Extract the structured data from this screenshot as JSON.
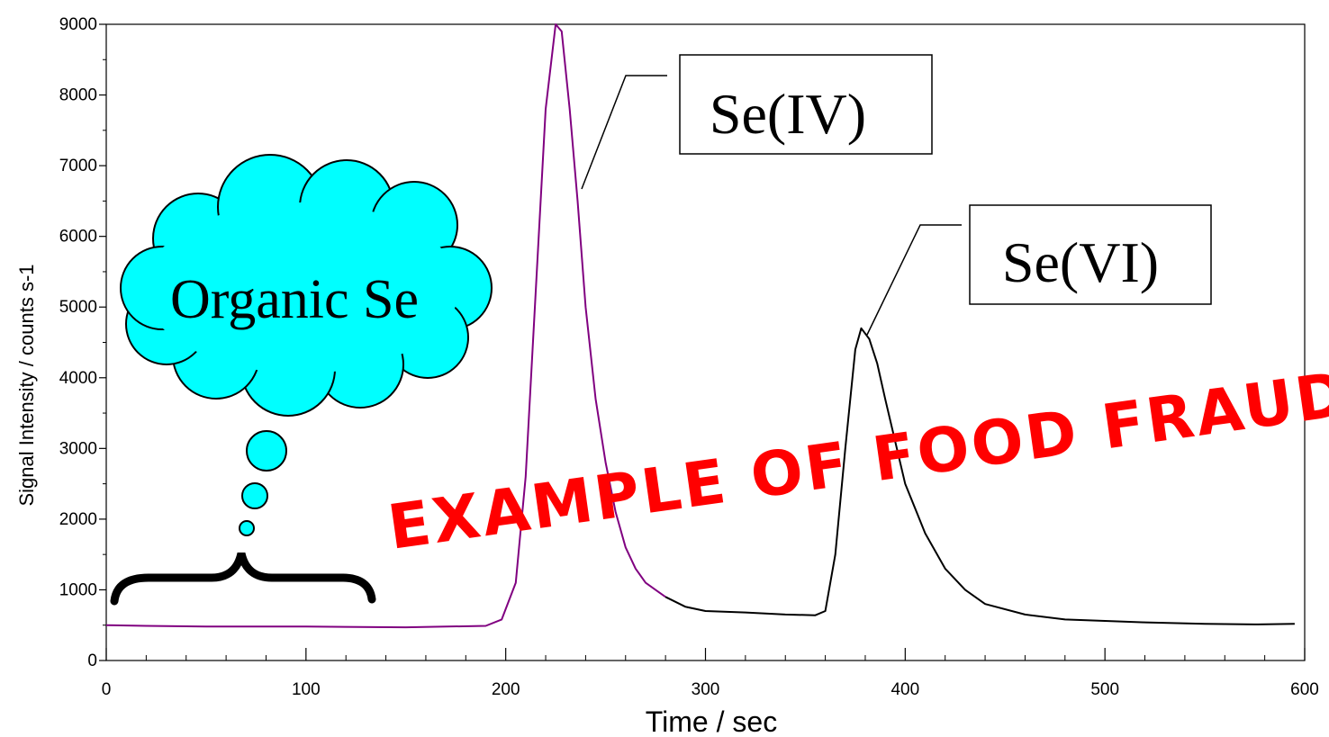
{
  "chart_data": {
    "type": "line",
    "xlabel": "Time / sec",
    "ylabel": "Signal Intensity / counts s-1",
    "xlim": [
      0,
      600
    ],
    "ylim": [
      0,
      9000
    ],
    "xticks": [
      0,
      100,
      200,
      300,
      400,
      500,
      600
    ],
    "yticks": [
      0,
      1000,
      2000,
      3000,
      4000,
      5000,
      6000,
      7000,
      8000,
      9000
    ],
    "grid": false,
    "series": [
      {
        "color": "#800080",
        "x": [
          0,
          20,
          50,
          100,
          150,
          190,
          198,
          205,
          210,
          215,
          220,
          225,
          228,
          232,
          236,
          240,
          245,
          250,
          255,
          260,
          265,
          270,
          275,
          280
        ],
        "y": [
          500,
          490,
          480,
          480,
          470,
          490,
          580,
          1100,
          2600,
          5200,
          7800,
          9000,
          8900,
          7800,
          6500,
          5000,
          3700,
          2800,
          2100,
          1600,
          1300,
          1100,
          1000,
          900
        ]
      },
      {
        "color": "#000000",
        "x": [
          280,
          290,
          300,
          320,
          340,
          355,
          360,
          365,
          370,
          375,
          378,
          382,
          386,
          390,
          395,
          400,
          410,
          420,
          430,
          440,
          460,
          480,
          500,
          520,
          550,
          575,
          595
        ],
        "y": [
          900,
          760,
          700,
          680,
          650,
          640,
          700,
          1500,
          3000,
          4400,
          4700,
          4550,
          4200,
          3700,
          3100,
          2500,
          1800,
          1300,
          1000,
          800,
          650,
          580,
          560,
          540,
          520,
          510,
          520
        ]
      }
    ],
    "annotations": [
      "Se(IV)",
      "Se(VI)",
      "Organic Se",
      "EXAMPLE OF FOOD FRAUD"
    ]
  }
}
